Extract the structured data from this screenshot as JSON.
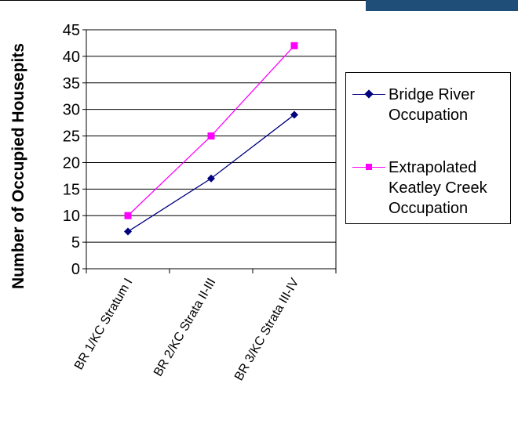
{
  "chart_data": {
    "type": "line",
    "title": "",
    "xlabel": "",
    "ylabel": "Number of Occupied Housepits",
    "categories": [
      "BR 1/KC Stratum I",
      "BR 2/KC Strata II-III",
      "BR 3/KC Strata III-IV"
    ],
    "yticks": [
      0,
      5,
      10,
      15,
      20,
      25,
      30,
      35,
      40,
      45
    ],
    "ylim": [
      0,
      45
    ],
    "grid": "horizontal",
    "legend_position": "right",
    "series": [
      {
        "name": "Bridge River Occupation",
        "values": [
          7,
          17,
          29
        ],
        "color": "#000080",
        "marker": "diamond"
      },
      {
        "name": "Extrapolated Keatley Creek Occupation",
        "values": [
          10,
          25,
          42
        ],
        "color": "#ff00ff",
        "marker": "square"
      }
    ]
  },
  "legend": {
    "items": [
      {
        "label": "Bridge River\nOccupation",
        "color": "#000080",
        "marker": "diamond"
      },
      {
        "label": "Extrapolated\nKeatley Creek\nOccupation",
        "color": "#ff00ff",
        "marker": "square"
      }
    ]
  }
}
